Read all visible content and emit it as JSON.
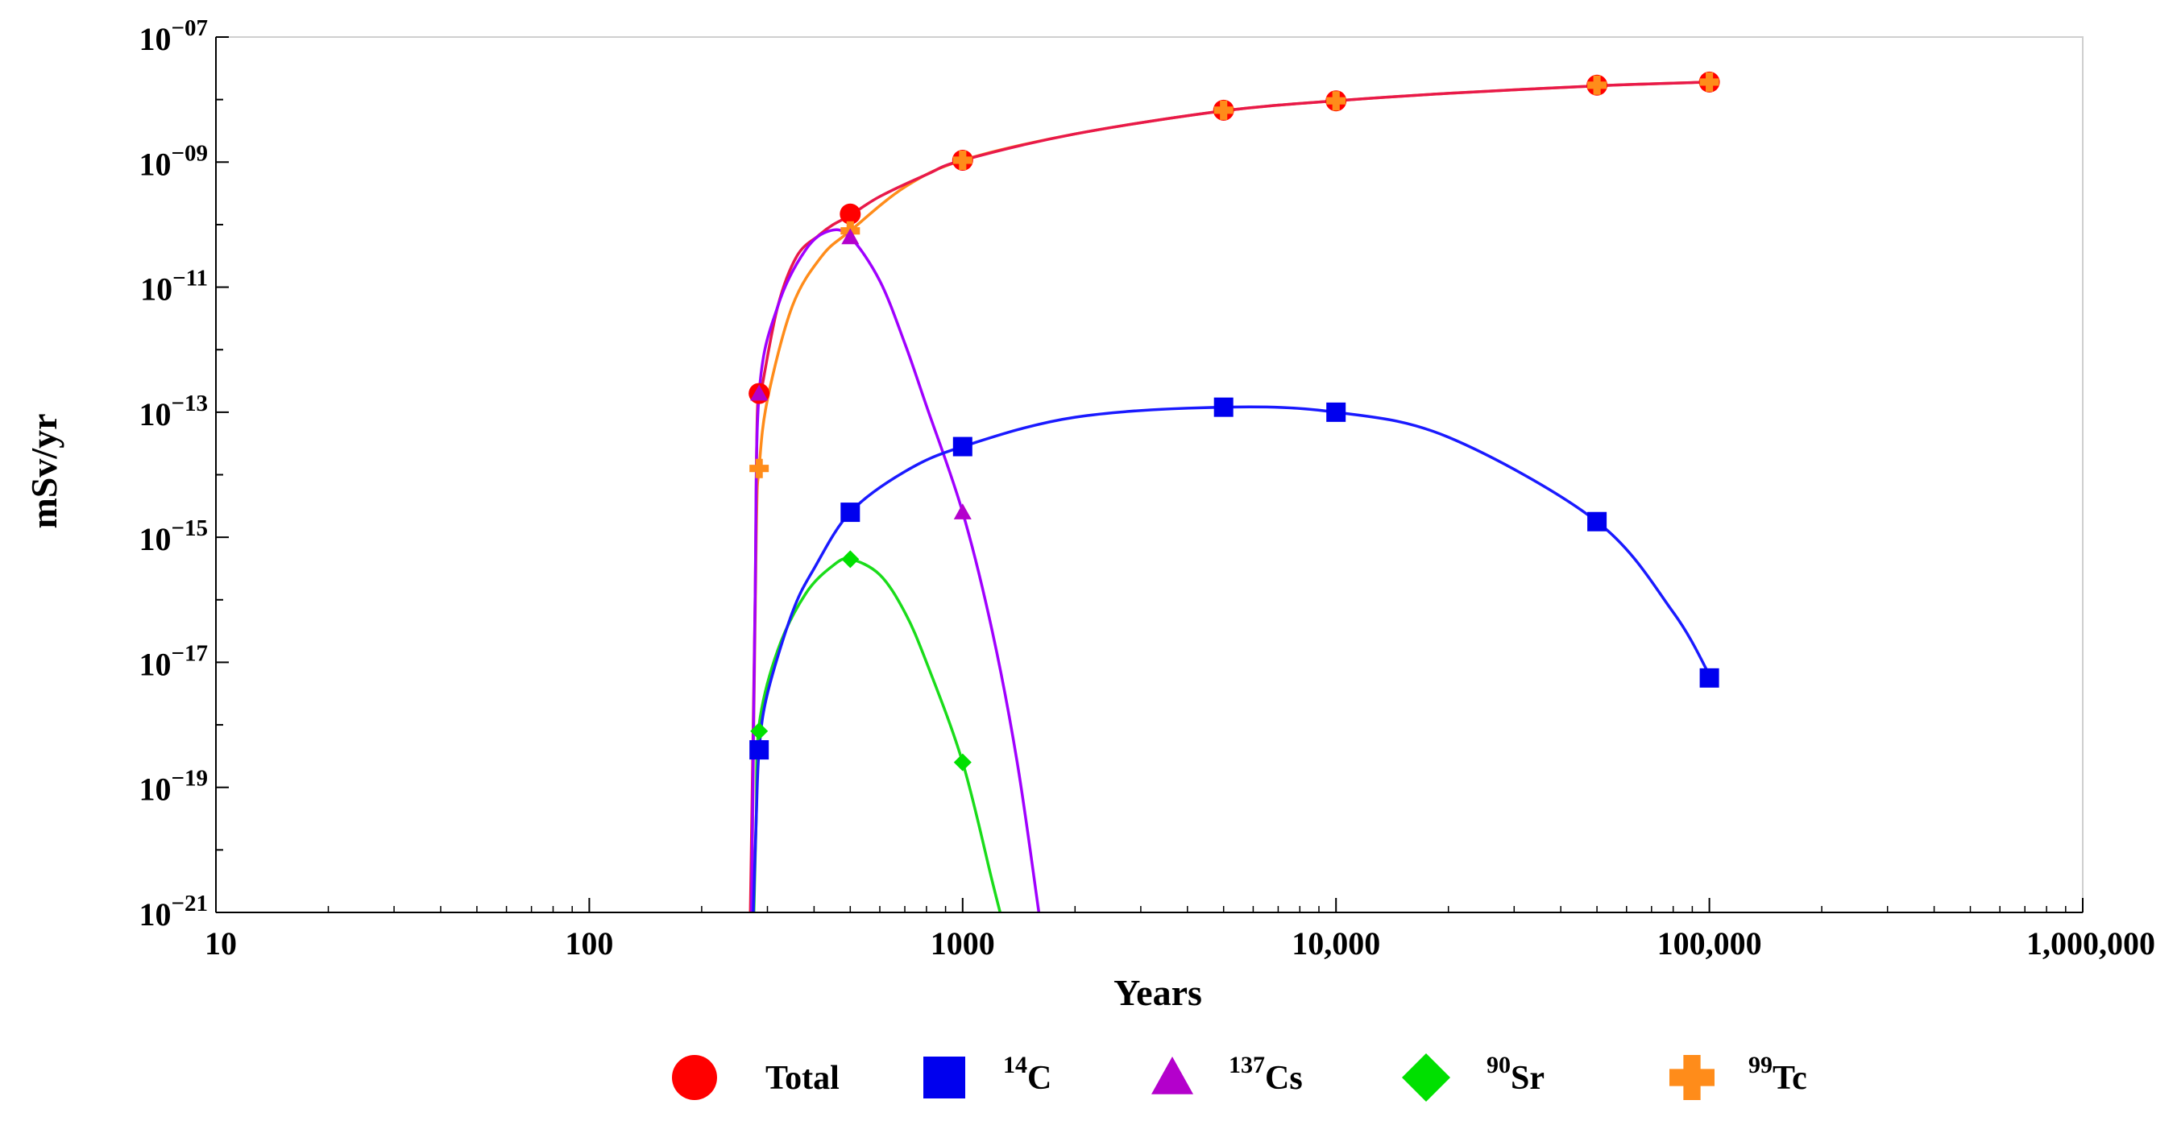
{
  "chart_data": {
    "type": "line",
    "title": "",
    "xlabel": "Years",
    "ylabel": "mSv/yr",
    "xscale": "log",
    "yscale": "log",
    "xlim": [
      10,
      1000000
    ],
    "ylim": [
      1e-21,
      1e-07
    ],
    "grid": false,
    "legend_position": "bottom",
    "x_ticks": [
      {
        "value": 10,
        "label": "10"
      },
      {
        "value": 100,
        "label": "100"
      },
      {
        "value": 1000,
        "label": "1000"
      },
      {
        "value": 10000,
        "label": "10,000"
      },
      {
        "value": 100000,
        "label": "100,000"
      },
      {
        "value": 1000000,
        "label": "1,000,000"
      }
    ],
    "y_ticks": [
      {
        "exp": -7,
        "base": "10",
        "sup": "−07"
      },
      {
        "exp": -9,
        "base": "10",
        "sup": "−09"
      },
      {
        "exp": -11,
        "base": "10",
        "sup": "−11"
      },
      {
        "exp": -13,
        "base": "10",
        "sup": "−13"
      },
      {
        "exp": -15,
        "base": "10",
        "sup": "−15"
      },
      {
        "exp": -17,
        "base": "10",
        "sup": "−17"
      },
      {
        "exp": -19,
        "base": "10",
        "sup": "−19"
      },
      {
        "exp": -21,
        "base": "10",
        "sup": "−21"
      }
    ],
    "series": [
      {
        "name": "Total",
        "label_sup": "",
        "label_main": "Total",
        "color": "#ff0000",
        "line_color": "#e8194a",
        "marker": "circle",
        "curve": [
          [
            270,
            -21
          ],
          [
            278,
            -16
          ],
          [
            282,
            -13
          ],
          [
            290,
            -12.6
          ],
          [
            320,
            -11.3
          ],
          [
            360,
            -10.5
          ],
          [
            410,
            -10.18
          ],
          [
            450,
            -10
          ],
          [
            500,
            -9.85
          ],
          [
            600,
            -9.55
          ],
          [
            800,
            -9.2
          ],
          [
            1000,
            -8.97
          ],
          [
            2000,
            -8.55
          ],
          [
            5000,
            -8.18
          ],
          [
            10000,
            -8.02
          ],
          [
            20000,
            -7.9
          ],
          [
            50000,
            -7.78
          ],
          [
            100000,
            -7.72
          ]
        ],
        "markers": [
          [
            285,
            -12.7
          ],
          [
            500,
            -9.83
          ],
          [
            1000,
            -8.97
          ],
          [
            5000,
            -8.17
          ],
          [
            10000,
            -8.02
          ],
          [
            50000,
            -7.77
          ],
          [
            100000,
            -7.72
          ]
        ]
      },
      {
        "name": "14C",
        "label_sup": "14",
        "label_main": "C",
        "color": "#0000ee",
        "line_color": "#1a1aff",
        "marker": "square",
        "curve": [
          [
            275,
            -21
          ],
          [
            280,
            -19.5
          ],
          [
            285,
            -18.4
          ],
          [
            300,
            -17.5
          ],
          [
            350,
            -16.2
          ],
          [
            400,
            -15.5
          ],
          [
            500,
            -14.6
          ],
          [
            700,
            -13.95
          ],
          [
            1000,
            -13.55
          ],
          [
            2000,
            -13.08
          ],
          [
            5000,
            -12.92
          ],
          [
            10000,
            -13.0
          ],
          [
            20000,
            -13.4
          ],
          [
            50000,
            -14.75
          ],
          [
            80000,
            -16.2
          ],
          [
            100000,
            -17.2
          ]
        ],
        "markers": [
          [
            285,
            -18.4
          ],
          [
            500,
            -14.6
          ],
          [
            1000,
            -13.55
          ],
          [
            5000,
            -12.92
          ],
          [
            10000,
            -13.0
          ],
          [
            50000,
            -14.75
          ],
          [
            100000,
            -17.25
          ]
        ]
      },
      {
        "name": "137Cs",
        "label_sup": "137",
        "label_main": "Cs",
        "color": "#b400cc",
        "line_color": "#a000ff",
        "marker": "triangle",
        "curve": [
          [
            272,
            -21
          ],
          [
            278,
            -16
          ],
          [
            285,
            -12.7
          ],
          [
            320,
            -11.3
          ],
          [
            380,
            -10.4
          ],
          [
            440,
            -10.1
          ],
          [
            500,
            -10.2
          ],
          [
            600,
            -10.9
          ],
          [
            700,
            -11.9
          ],
          [
            800,
            -12.9
          ],
          [
            1000,
            -14.6
          ],
          [
            1200,
            -16.5
          ],
          [
            1400,
            -18.6
          ],
          [
            1600,
            -21
          ]
        ],
        "markers": [
          [
            285,
            -12.7
          ],
          [
            500,
            -10.2
          ],
          [
            1000,
            -14.6
          ]
        ]
      },
      {
        "name": "90Sr",
        "label_sup": "90",
        "label_main": "Sr",
        "color": "#00e000",
        "line_color": "#1adc1a",
        "marker": "diamond",
        "curve": [
          [
            276,
            -21
          ],
          [
            280,
            -19.5
          ],
          [
            285,
            -18.0
          ],
          [
            320,
            -16.8
          ],
          [
            380,
            -15.9
          ],
          [
            450,
            -15.45
          ],
          [
            500,
            -15.35
          ],
          [
            600,
            -15.6
          ],
          [
            700,
            -16.2
          ],
          [
            800,
            -17.0
          ],
          [
            1000,
            -18.6
          ],
          [
            1200,
            -20.5
          ],
          [
            1260,
            -21
          ]
        ],
        "markers": [
          [
            285,
            -18.1
          ],
          [
            500,
            -15.35
          ],
          [
            1000,
            -18.6
          ]
        ]
      },
      {
        "name": "99Tc",
        "label_sup": "99",
        "label_main": "Tc",
        "color": "#ff8c1a",
        "line_color": "#ff8c1a",
        "marker": "plus",
        "curve": [
          [
            272,
            -21
          ],
          [
            280,
            -15
          ],
          [
            285,
            -13.9
          ],
          [
            300,
            -12.8
          ],
          [
            350,
            -11.3
          ],
          [
            420,
            -10.5
          ],
          [
            500,
            -10.1
          ],
          [
            700,
            -9.4
          ],
          [
            1000,
            -8.97
          ],
          [
            2000,
            -8.55
          ],
          [
            5000,
            -8.18
          ],
          [
            10000,
            -8.02
          ],
          [
            20000,
            -7.9
          ],
          [
            50000,
            -7.78
          ],
          [
            100000,
            -7.72
          ]
        ],
        "markers": [
          [
            285,
            -13.9
          ],
          [
            500,
            -10.1
          ],
          [
            1000,
            -8.97
          ],
          [
            5000,
            -8.17
          ],
          [
            10000,
            -8.02
          ],
          [
            50000,
            -7.77
          ],
          [
            100000,
            -7.72
          ]
        ]
      }
    ]
  }
}
